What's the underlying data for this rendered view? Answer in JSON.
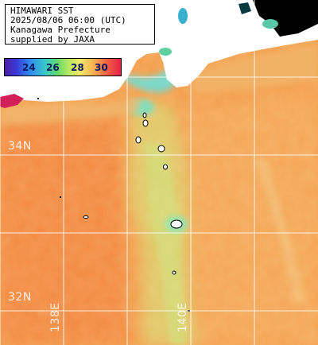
{
  "title_lines": [
    "HIMAWARI SST",
    "2025/08/06 06:00 (UTC)",
    "Kanagawa Prefecture",
    "supplied by JAXA"
  ],
  "colorbar": {
    "ticks": [
      "24",
      "26",
      "28",
      "30"
    ],
    "colors": [
      "#4b1ea0",
      "#2f8cf0",
      "#5fd86e",
      "#f4e868",
      "#f6a850",
      "#e8204a"
    ]
  },
  "grid_labels": {
    "lat": [
      "34N",
      "32N"
    ],
    "lon": [
      "138E",
      "140E"
    ]
  },
  "colors": {
    "ocean_warm": "#f5a055",
    "ocean_cool_band": "#dcd070",
    "ocean_west": "#f39048",
    "land": "#ffffff",
    "coast_blue": "#6ad6c0",
    "no_data": "#000000",
    "grid": "#ffffff"
  }
}
